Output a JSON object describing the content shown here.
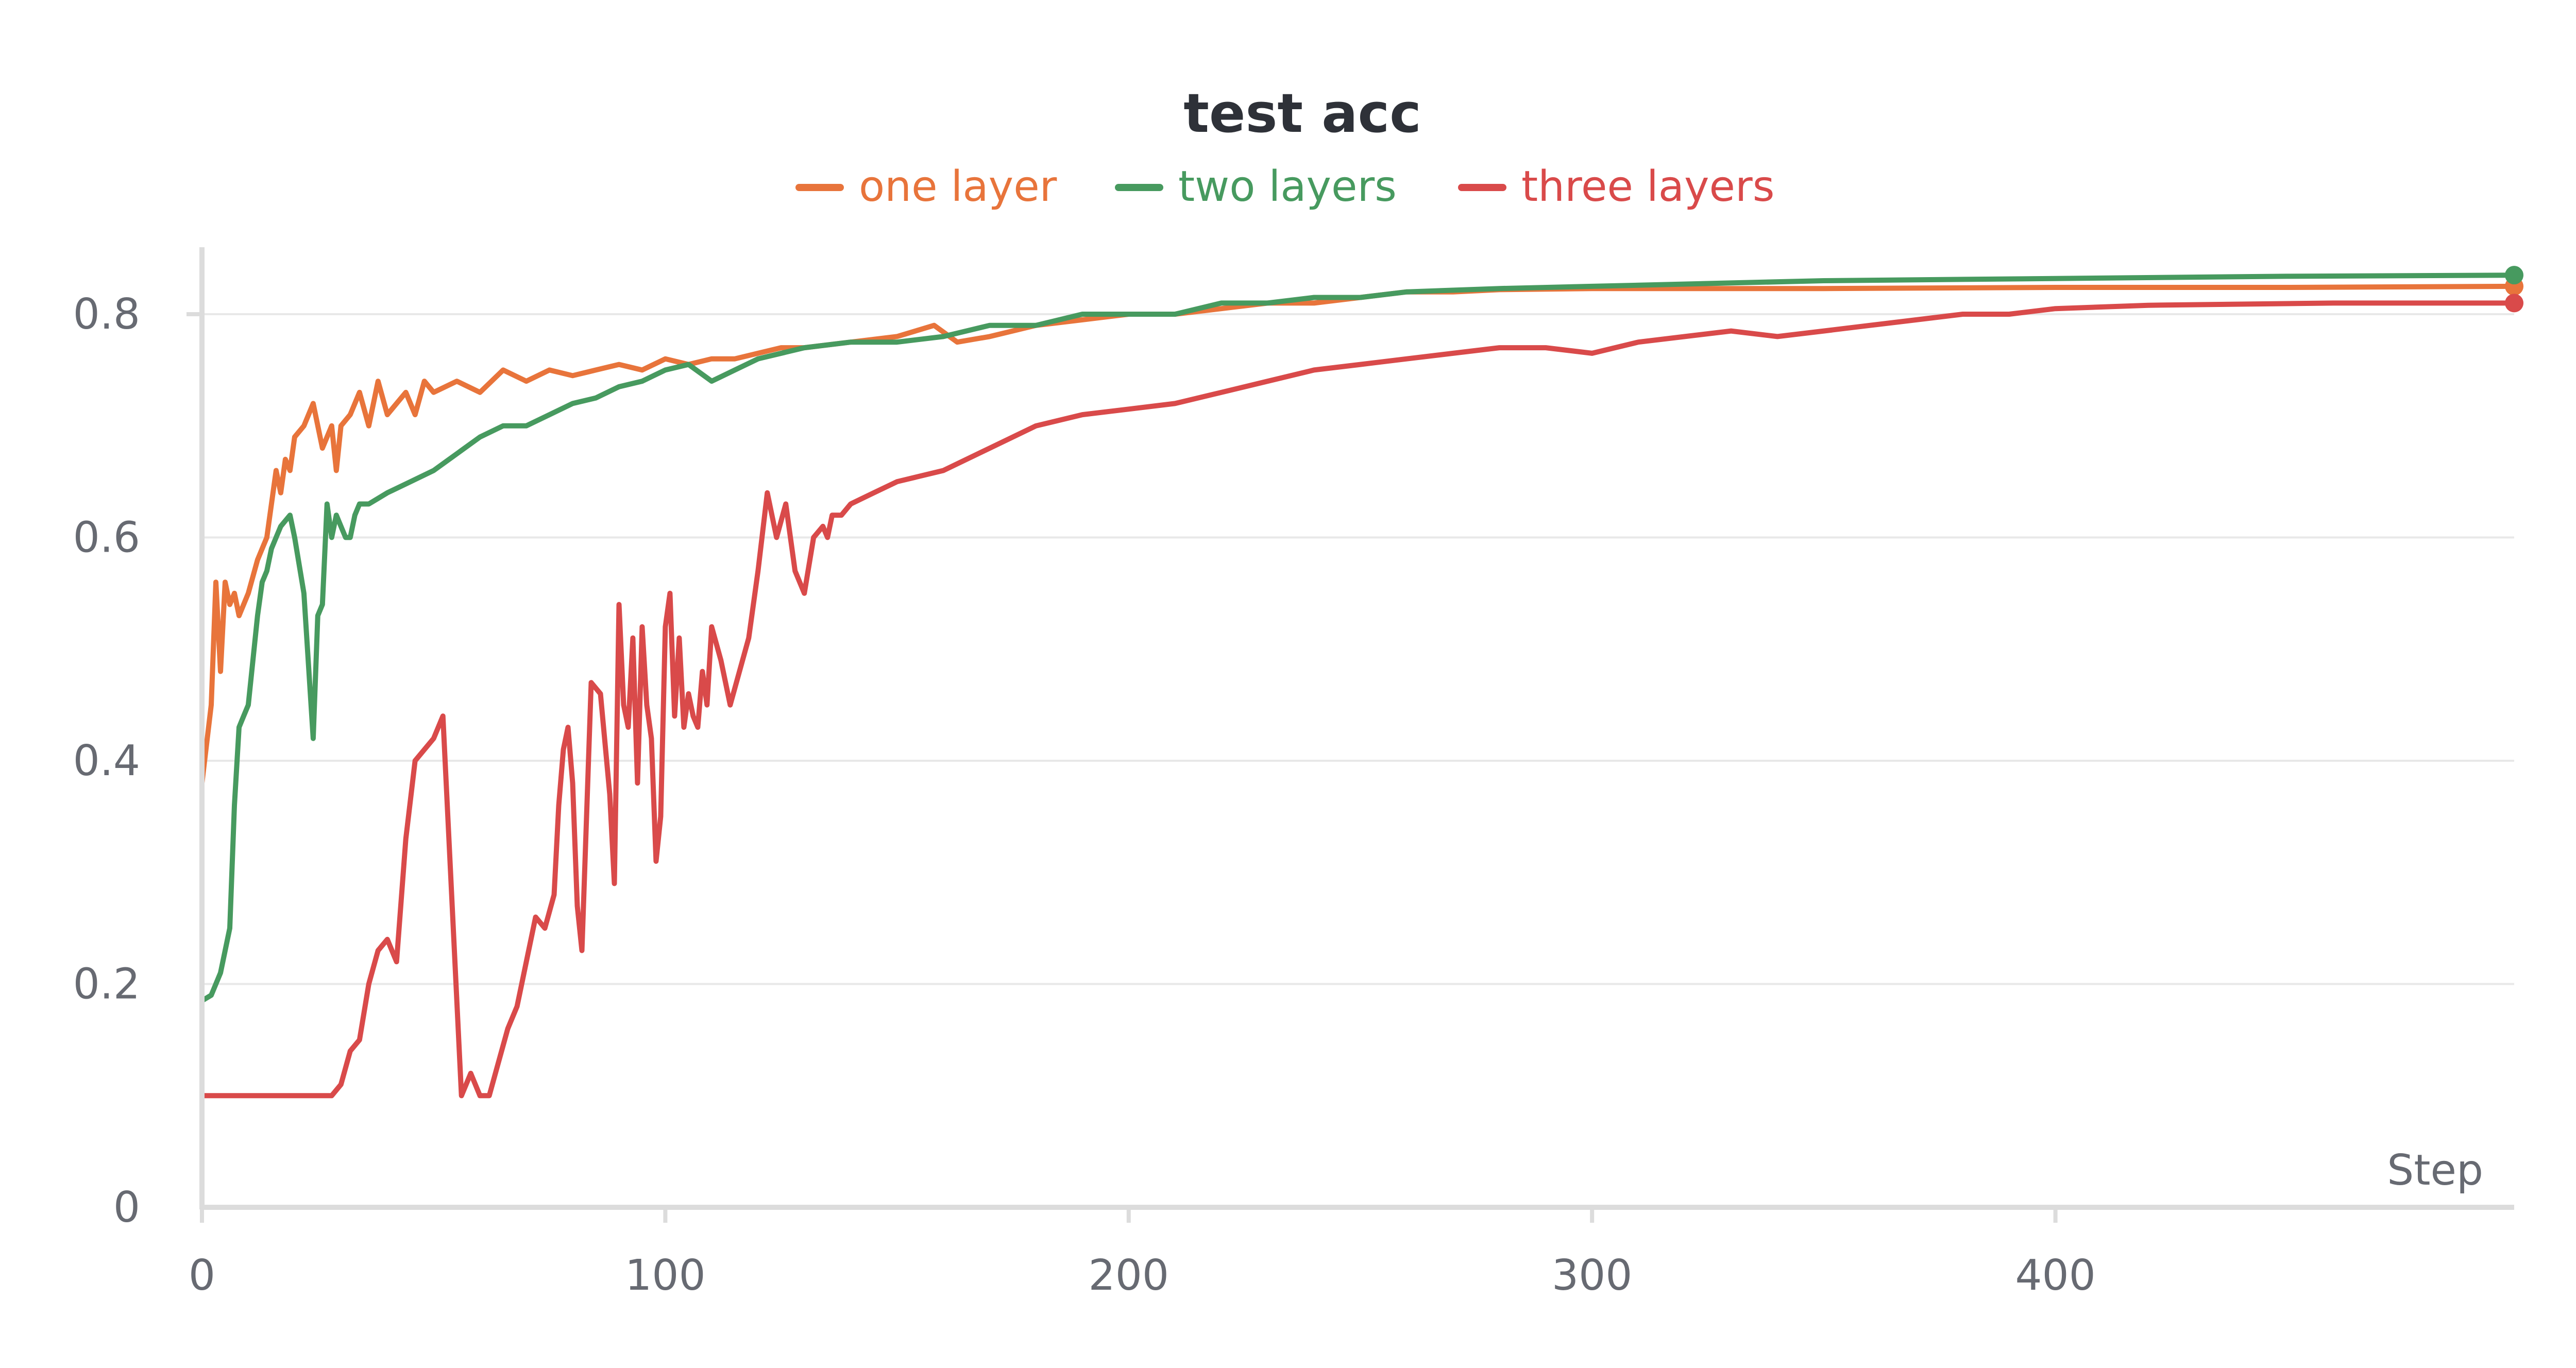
{
  "chart_data": {
    "type": "line",
    "title": "test acc",
    "xlabel": "Step",
    "ylabel": "",
    "xlim": [
      0,
      499
    ],
    "ylim": [
      0,
      0.86
    ],
    "x_ticks": [
      0,
      100,
      200,
      300,
      400
    ],
    "y_ticks": [
      0,
      0.2,
      0.4,
      0.6,
      0.8
    ],
    "x_tick_labels": [
      "0",
      "100",
      "200",
      "300",
      "400"
    ],
    "y_tick_labels": [
      "0",
      "0.2",
      "0.4",
      "0.6",
      "0.8"
    ],
    "grid": true,
    "legend_position": "top-center",
    "series": [
      {
        "name": "one layer",
        "color": "#e8743b",
        "x": [
          0,
          2,
          3,
          4,
          5,
          6,
          7,
          8,
          10,
          12,
          14,
          16,
          17,
          18,
          19,
          20,
          22,
          24,
          26,
          28,
          29,
          30,
          32,
          34,
          36,
          38,
          40,
          42,
          44,
          46,
          48,
          50,
          55,
          60,
          65,
          70,
          75,
          80,
          85,
          90,
          95,
          100,
          105,
          110,
          115,
          120,
          125,
          130,
          140,
          150,
          158,
          163,
          170,
          180,
          190,
          200,
          210,
          220,
          230,
          240,
          250,
          260,
          270,
          280,
          300,
          350,
          400,
          450,
          499
        ],
        "y": [
          0.38,
          0.45,
          0.56,
          0.48,
          0.56,
          0.54,
          0.55,
          0.53,
          0.55,
          0.58,
          0.6,
          0.66,
          0.64,
          0.67,
          0.66,
          0.69,
          0.7,
          0.72,
          0.68,
          0.7,
          0.66,
          0.7,
          0.71,
          0.73,
          0.7,
          0.74,
          0.71,
          0.72,
          0.73,
          0.71,
          0.74,
          0.73,
          0.74,
          0.73,
          0.75,
          0.74,
          0.75,
          0.745,
          0.75,
          0.755,
          0.75,
          0.76,
          0.755,
          0.76,
          0.76,
          0.765,
          0.77,
          0.77,
          0.775,
          0.78,
          0.79,
          0.775,
          0.78,
          0.79,
          0.795,
          0.8,
          0.8,
          0.805,
          0.81,
          0.81,
          0.815,
          0.82,
          0.82,
          0.822,
          0.823,
          0.823,
          0.824,
          0.824,
          0.825
        ]
      },
      {
        "name": "two layers",
        "color": "#479a5f",
        "x": [
          0,
          2,
          3,
          4,
          5,
          6,
          7,
          8,
          9,
          10,
          11,
          12,
          13,
          14,
          15,
          16,
          17,
          18,
          19,
          20,
          22,
          24,
          25,
          26,
          27,
          28,
          29,
          30,
          31,
          32,
          33,
          34,
          36,
          38,
          40,
          45,
          50,
          55,
          60,
          65,
          70,
          75,
          80,
          85,
          90,
          95,
          100,
          105,
          110,
          115,
          120,
          130,
          140,
          150,
          160,
          170,
          180,
          190,
          200,
          210,
          220,
          230,
          240,
          250,
          260,
          280,
          300,
          350,
          400,
          450,
          499
        ],
        "y": [
          0.185,
          0.19,
          0.2,
          0.21,
          0.23,
          0.25,
          0.36,
          0.43,
          0.44,
          0.45,
          0.49,
          0.53,
          0.56,
          0.57,
          0.59,
          0.6,
          0.61,
          0.615,
          0.62,
          0.6,
          0.55,
          0.42,
          0.53,
          0.54,
          0.63,
          0.6,
          0.62,
          0.61,
          0.6,
          0.6,
          0.62,
          0.63,
          0.63,
          0.635,
          0.64,
          0.65,
          0.66,
          0.675,
          0.69,
          0.7,
          0.7,
          0.71,
          0.72,
          0.725,
          0.735,
          0.74,
          0.75,
          0.755,
          0.74,
          0.75,
          0.76,
          0.77,
          0.775,
          0.775,
          0.78,
          0.79,
          0.79,
          0.8,
          0.8,
          0.8,
          0.81,
          0.81,
          0.815,
          0.815,
          0.82,
          0.823,
          0.825,
          0.83,
          0.832,
          0.834,
          0.835
        ]
      },
      {
        "name": "three layers",
        "color": "#d94a4a",
        "x": [
          0,
          10,
          20,
          25,
          28,
          30,
          32,
          34,
          36,
          38,
          40,
          42,
          44,
          46,
          48,
          50,
          52,
          54,
          56,
          58,
          60,
          62,
          64,
          66,
          68,
          70,
          72,
          74,
          76,
          77,
          78,
          79,
          80,
          81,
          82,
          83,
          84,
          86,
          88,
          89,
          90,
          91,
          92,
          93,
          94,
          95,
          96,
          97,
          98,
          99,
          100,
          101,
          102,
          103,
          104,
          105,
          106,
          107,
          108,
          109,
          110,
          112,
          114,
          116,
          118,
          120,
          122,
          124,
          126,
          128,
          130,
          132,
          134,
          135,
          136,
          138,
          140,
          145,
          150,
          160,
          170,
          180,
          190,
          200,
          210,
          220,
          230,
          240,
          250,
          260,
          270,
          280,
          290,
          300,
          310,
          320,
          330,
          340,
          350,
          360,
          370,
          380,
          390,
          400,
          420,
          440,
          460,
          480,
          499
        ],
        "y": [
          0.1,
          0.1,
          0.1,
          0.1,
          0.1,
          0.11,
          0.14,
          0.15,
          0.2,
          0.23,
          0.24,
          0.22,
          0.33,
          0.4,
          0.41,
          0.42,
          0.44,
          0.27,
          0.1,
          0.12,
          0.1,
          0.1,
          0.13,
          0.16,
          0.18,
          0.22,
          0.26,
          0.25,
          0.28,
          0.36,
          0.41,
          0.43,
          0.38,
          0.27,
          0.23,
          0.35,
          0.47,
          0.46,
          0.37,
          0.29,
          0.54,
          0.45,
          0.43,
          0.51,
          0.38,
          0.52,
          0.45,
          0.42,
          0.31,
          0.35,
          0.52,
          0.55,
          0.44,
          0.51,
          0.43,
          0.46,
          0.44,
          0.43,
          0.48,
          0.45,
          0.52,
          0.49,
          0.45,
          0.48,
          0.51,
          0.57,
          0.64,
          0.6,
          0.63,
          0.57,
          0.55,
          0.6,
          0.61,
          0.6,
          0.62,
          0.62,
          0.63,
          0.64,
          0.65,
          0.66,
          0.68,
          0.7,
          0.71,
          0.715,
          0.72,
          0.73,
          0.74,
          0.75,
          0.755,
          0.76,
          0.765,
          0.77,
          0.77,
          0.765,
          0.775,
          0.78,
          0.785,
          0.78,
          0.785,
          0.79,
          0.795,
          0.8,
          0.8,
          0.805,
          0.808,
          0.809,
          0.81,
          0.81,
          0.81
        ]
      }
    ]
  }
}
